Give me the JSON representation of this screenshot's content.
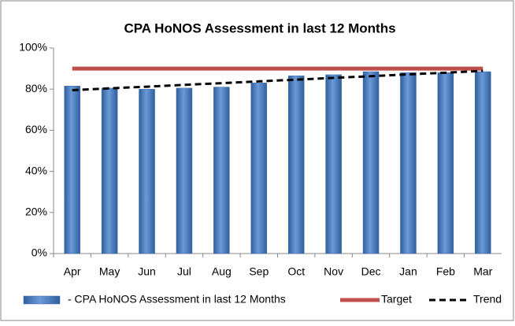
{
  "chart_data": {
    "type": "bar",
    "title": "CPA HoNOS Assessment in last 12 Months",
    "categories": [
      "Apr",
      "May",
      "Jun",
      "Jul",
      "Aug",
      "Sep",
      "Oct",
      "Nov",
      "Dec",
      "Jan",
      "Feb",
      "Mar"
    ],
    "series": [
      {
        "name": " - CPA HoNOS Assessment in last 12 Months",
        "type": "bar",
        "color": "#4f81bd",
        "values": [
          81.5,
          80.5,
          80,
          80.5,
          81,
          83,
          86.5,
          87,
          88.5,
          88,
          88,
          88.5
        ]
      },
      {
        "name": "Target",
        "type": "line",
        "color": "#c0504d",
        "dashed": false,
        "values": [
          90,
          90,
          90,
          90,
          90,
          90,
          90,
          90,
          90,
          90,
          90,
          90
        ]
      },
      {
        "name": "Trend",
        "type": "line",
        "color": "#000000",
        "dashed": true,
        "values": [
          79.5,
          80.4,
          81.2,
          82.1,
          82.9,
          83.8,
          84.6,
          85.5,
          86.3,
          87.2,
          88.0,
          88.9
        ]
      }
    ],
    "ylim": [
      0,
      100
    ],
    "yticks": [
      {
        "value": 0,
        "label": "0%"
      },
      {
        "value": 20,
        "label": "20%"
      },
      {
        "value": 40,
        "label": "40%"
      },
      {
        "value": 60,
        "label": "60%"
      },
      {
        "value": 80,
        "label": "80%"
      },
      {
        "value": 100,
        "label": "100%"
      }
    ],
    "grid": false,
    "legend": "bottom"
  }
}
